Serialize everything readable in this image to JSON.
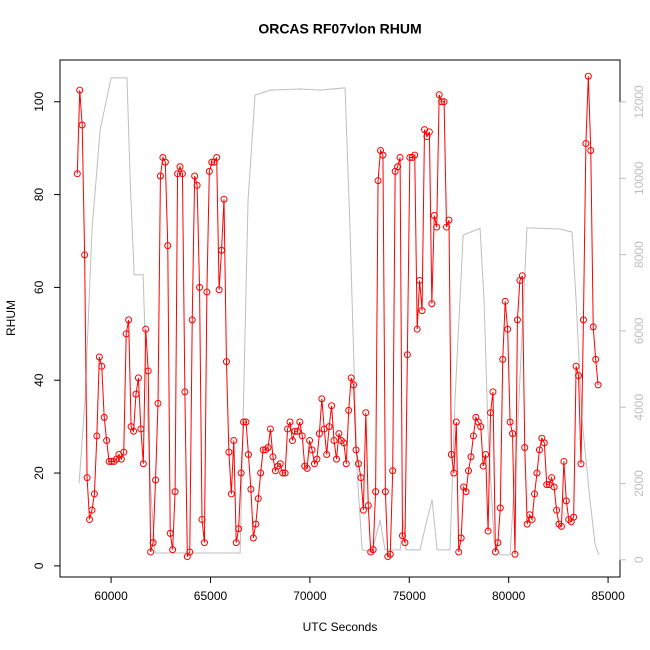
{
  "chart_data": {
    "type": "line",
    "title": "ORCAS RF07vlon RHUM",
    "x_label": "UTC Seconds",
    "y_label": "RHUM",
    "xlim": [
      57430,
      85600
    ],
    "ylim": [
      -2.4,
      109
    ],
    "y2lim": [
      -450,
      13100
    ],
    "xticks": [
      60000,
      65000,
      70000,
      75000,
      80000,
      85000
    ],
    "yticks": [
      0,
      20,
      40,
      60,
      80,
      100
    ],
    "y2ticks": [
      0,
      2000,
      4000,
      6000,
      8000,
      10000,
      12000
    ],
    "series": [
      {
        "axis": "y2",
        "color": "#bebebe",
        "markers": false,
        "x": [
          58390,
          58690,
          59040,
          59450,
          60000,
          60800,
          60960,
          61160,
          61610,
          61810,
          61960,
          62210,
          66490,
          66890,
          67240,
          68000,
          69510,
          70510,
          71770,
          72020,
          72370,
          72630,
          73130,
          73530,
          73780,
          74540,
          74690,
          74840,
          75540,
          75890,
          76150,
          76400,
          77050,
          77300,
          77710,
          78560,
          78760,
          78960,
          79260,
          79570,
          80070,
          80470,
          80920,
          82580,
          83190,
          83390,
          83690,
          84090,
          84350,
          84550
        ],
        "values": [
          2000,
          4200,
          8650,
          11270,
          12630,
          12630,
          9950,
          7470,
          7470,
          4200,
          2100,
          180,
          180,
          9430,
          12180,
          12310,
          12340,
          12310,
          12370,
          8650,
          2360,
          260,
          210,
          1050,
          260,
          260,
          1050,
          260,
          260,
          1050,
          1570,
          260,
          260,
          4190,
          8510,
          8690,
          6810,
          3400,
          520,
          130,
          130,
          3670,
          8700,
          8670,
          8590,
          6810,
          3670,
          1570,
          390,
          130
        ]
      },
      {
        "axis": "y",
        "color": "#ff0000",
        "markers": true,
        "x": [
          58300,
          58423,
          58546,
          58669,
          58792,
          58915,
          59038,
          59161,
          59284,
          59407,
          59530,
          59653,
          59776,
          59899,
          60022,
          60145,
          60268,
          60391,
          60514,
          60637,
          60760,
          60883,
          61006,
          61129,
          61252,
          61375,
          61498,
          61621,
          61744,
          61867,
          61990,
          62113,
          62236,
          62359,
          62482,
          62605,
          62728,
          62851,
          62974,
          63097,
          63220,
          63343,
          63466,
          63589,
          63712,
          63835,
          63958,
          64081,
          64204,
          64327,
          64450,
          64573,
          64696,
          64819,
          64942,
          65065,
          65188,
          65311,
          65434,
          65557,
          65680,
          65803,
          65926,
          66049,
          66172,
          66295,
          66418,
          66541,
          66664,
          66787,
          66910,
          67033,
          67156,
          67279,
          67402,
          67525,
          67648,
          67771,
          67894,
          68017,
          68140,
          68263,
          68386,
          68509,
          68632,
          68755,
          68878,
          69001,
          69124,
          69247,
          69370,
          69493,
          69616,
          69739,
          69862,
          69985,
          70108,
          70231,
          70354,
          70477,
          70600,
          70723,
          70846,
          70969,
          71092,
          71215,
          71338,
          71461,
          71584,
          71707,
          71830,
          71953,
          72076,
          72199,
          72322,
          72445,
          72568,
          72691,
          72814,
          72937,
          73060,
          73183,
          73306,
          73429,
          73552,
          73675,
          73798,
          73921,
          74044,
          74167,
          74290,
          74413,
          74536,
          74659,
          74782,
          74905,
          75028,
          75151,
          75274,
          75397,
          75520,
          75643,
          75766,
          75889,
          76012,
          76135,
          76258,
          76381,
          76504,
          76627,
          76750,
          76873,
          76996,
          77119,
          77242,
          77365,
          77488,
          77611,
          77734,
          77857,
          77980,
          78103,
          78226,
          78349,
          78472,
          78595,
          78718,
          78841,
          78964,
          79087,
          79210,
          79333,
          79456,
          79579,
          79702,
          79825,
          79948,
          80071,
          80194,
          80317,
          80440,
          80563,
          80686,
          80809,
          80932,
          81055,
          81178,
          81301,
          81424,
          81547,
          81670,
          81793,
          81916,
          82039,
          82162,
          82285,
          82408,
          82531,
          82654,
          82777,
          82900,
          83023,
          83146,
          83269,
          83392,
          83515,
          83638,
          83761,
          83884,
          84007,
          84130,
          84253,
          84376,
          84499
        ],
        "values": [
          84.5,
          102.5,
          95,
          67,
          19,
          10,
          12,
          15.5,
          28,
          45,
          43,
          32,
          27,
          22.5,
          22.5,
          22.5,
          23,
          24,
          23,
          24.5,
          50,
          53,
          30,
          29,
          37,
          40.5,
          29.5,
          22,
          51,
          42,
          3,
          5,
          18.5,
          35,
          84,
          88,
          87,
          69,
          7,
          3.5,
          16,
          84.5,
          86,
          84.5,
          37.5,
          2,
          3,
          53,
          84,
          82,
          60,
          10,
          5,
          59,
          85,
          87,
          87,
          88,
          59.5,
          68,
          79,
          44,
          24.5,
          15.5,
          27,
          5,
          8,
          20,
          31,
          31,
          24,
          16.5,
          6,
          9,
          14.5,
          20,
          25,
          25,
          25.5,
          29.5,
          23.5,
          20.5,
          21.5,
          22,
          20,
          20,
          29.5,
          31,
          27,
          29,
          29,
          31,
          28,
          21.5,
          21,
          27,
          25,
          22,
          23,
          28.5,
          36,
          29.5,
          24,
          30,
          34.5,
          27,
          23,
          28.5,
          27,
          26.5,
          22,
          33.5,
          40.5,
          39,
          25,
          22,
          19,
          12,
          33,
          13,
          3,
          3.5,
          16,
          83,
          89.5,
          88.5,
          16,
          2,
          2.5,
          20.5,
          85,
          86,
          88,
          6.5,
          5,
          45.5,
          88,
          88,
          88.5,
          51,
          61.5,
          55,
          94,
          92.5,
          93.5,
          56.5,
          75.5,
          73,
          101.5,
          100,
          100,
          73,
          74.5,
          24,
          20,
          31,
          3,
          6,
          17,
          16,
          20.5,
          23.5,
          28,
          32,
          31,
          30,
          21.5,
          24,
          7.5,
          33,
          37.5,
          3,
          5,
          12.5,
          44.5,
          57,
          51,
          31,
          28.5,
          2.5,
          53,
          61.5,
          62.5,
          25.5,
          9,
          11,
          10,
          15.5,
          20,
          25,
          27.5,
          26.5,
          17.5,
          17.5,
          19,
          17,
          12,
          9,
          8.5,
          22.5,
          14,
          10,
          9.5,
          10.5,
          43,
          41,
          22,
          53,
          91,
          105.5,
          89.5,
          51.5,
          44.5,
          39
        ]
      }
    ]
  }
}
